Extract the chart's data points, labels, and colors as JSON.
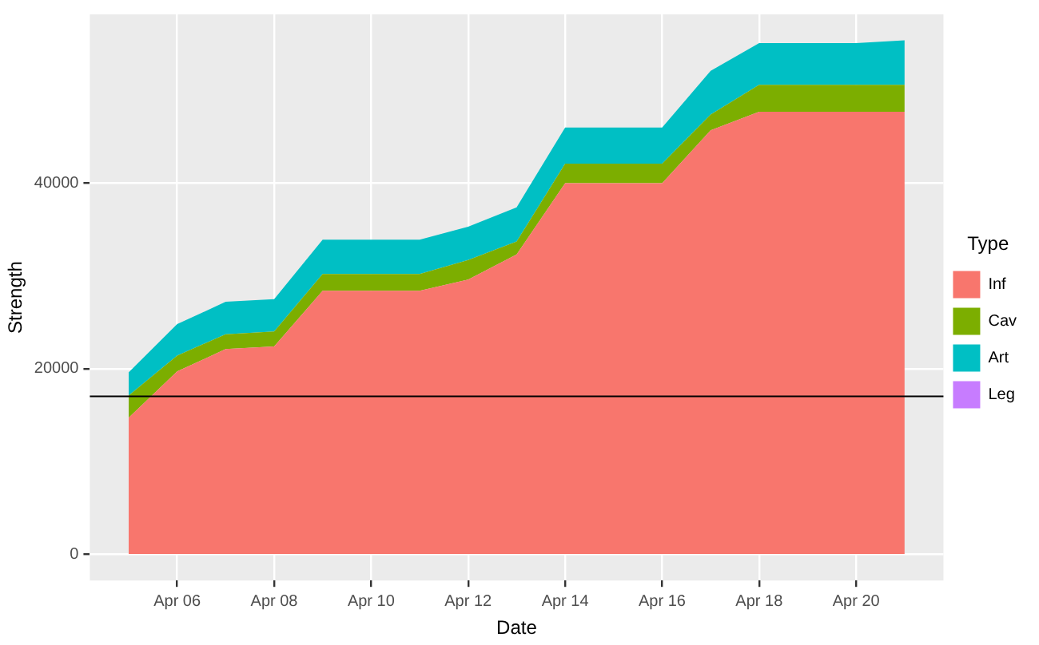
{
  "chart_data": {
    "type": "area",
    "stacked": true,
    "xlabel": "Date",
    "ylabel": "Strength",
    "legend_title": "Type",
    "legend": "right",
    "grid": true,
    "x": [
      "--04-05",
      "--04-06",
      "--04-07",
      "--04-08",
      "--04-09",
      "--04-10",
      "--04-11",
      "--04-12",
      "--04-13",
      "--04-14",
      "--04-15",
      "--04-16",
      "--04-17",
      "--04-18",
      "--04-19",
      "--04-20",
      "--04-21"
    ],
    "series": [
      {
        "name": "Inf",
        "color": "#f8766d",
        "values": [
          14700,
          19700,
          22100,
          22400,
          28400,
          28400,
          28400,
          29600,
          32300,
          40000,
          40000,
          40000,
          45700,
          47700,
          47700,
          47700,
          47700
        ]
      },
      {
        "name": "Cav",
        "color": "#7cae00",
        "values": [
          2400,
          1700,
          1600,
          1600,
          1800,
          1800,
          1800,
          2100,
          1400,
          2100,
          2100,
          2100,
          1700,
          2900,
          2900,
          2900,
          2900
        ]
      },
      {
        "name": "Art",
        "color": "#00bfc4",
        "values": [
          2500,
          3400,
          3500,
          3500,
          3700,
          3700,
          3700,
          3600,
          3700,
          3900,
          3900,
          3900,
          4700,
          4500,
          4500,
          4500,
          4800
        ]
      },
      {
        "name": "Leg",
        "color": "#c77cff",
        "values": [
          null,
          null,
          null,
          null,
          null,
          null,
          null,
          null,
          null,
          null,
          null,
          null,
          null,
          null,
          null,
          null,
          null
        ]
      }
    ],
    "xlim": [
      "--04-04T04:48",
      "--04-21T19:12"
    ],
    "xticks": [
      {
        "value": "--04-06",
        "label": "Apr 06"
      },
      {
        "value": "--04-08",
        "label": "Apr 08"
      },
      {
        "value": "--04-10",
        "label": "Apr 10"
      },
      {
        "value": "--04-12",
        "label": "Apr 12"
      },
      {
        "value": "--04-14",
        "label": "Apr 14"
      },
      {
        "value": "--04-16",
        "label": "Apr 16"
      },
      {
        "value": "--04-18",
        "label": "Apr 18"
      },
      {
        "value": "--04-20",
        "label": "Apr 20"
      }
    ],
    "ylim": [
      -2850,
      58200
    ],
    "yticks": [
      0,
      20000,
      40000
    ],
    "ref_lines": [
      {
        "axis": "y",
        "value": 17000,
        "color": "#000000"
      }
    ]
  }
}
